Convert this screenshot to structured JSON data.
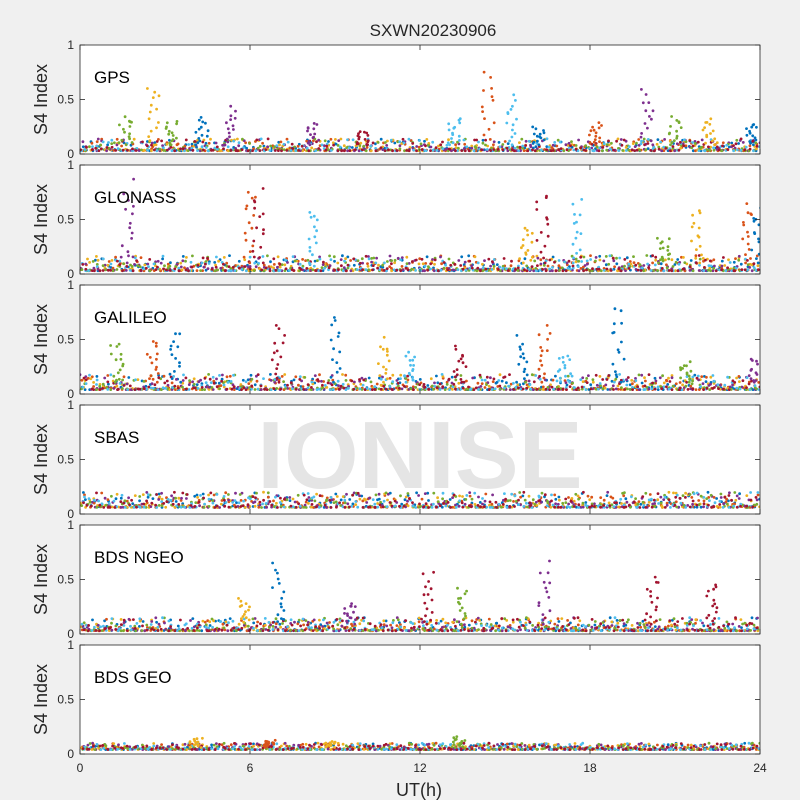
{
  "figure": {
    "title": "SXWN20230906",
    "xlabel": "UT(h)",
    "watermark": "IONISE"
  },
  "chart_data": {
    "type": "scatter",
    "title": "SXWN20230906",
    "xlabel": "UT(h)",
    "ylabel": "S4 Index",
    "xlim": [
      0,
      24
    ],
    "xticks": [
      0,
      6,
      12,
      18,
      24
    ],
    "ylim": [
      0,
      1
    ],
    "yticks": [
      0,
      0.5,
      1
    ],
    "colors": [
      "#0072BD",
      "#D95319",
      "#EDB120",
      "#7E2F8E",
      "#77AC30",
      "#4DBEEE",
      "#A2142F"
    ],
    "panels": [
      {
        "name": "GPS",
        "baseline": [
          0.03,
          0.14
        ],
        "peaks": [
          [
            1.6,
            0.36,
            4
          ],
          [
            2.6,
            0.65,
            2
          ],
          [
            3.2,
            0.32,
            4
          ],
          [
            4.3,
            0.35,
            0
          ],
          [
            5.3,
            0.45,
            3
          ],
          [
            8.2,
            0.3,
            3
          ],
          [
            10.0,
            0.22,
            6
          ],
          [
            13.2,
            0.35,
            5
          ],
          [
            14.4,
            0.77,
            1
          ],
          [
            15.2,
            0.57,
            5
          ],
          [
            16.2,
            0.25,
            0
          ],
          [
            18.2,
            0.3,
            1
          ],
          [
            20.0,
            0.6,
            3
          ],
          [
            21.0,
            0.35,
            4
          ],
          [
            22.2,
            0.33,
            2
          ],
          [
            23.7,
            0.3,
            0
          ]
        ]
      },
      {
        "name": "GLONASS",
        "baseline": [
          0.03,
          0.17
        ],
        "peaks": [
          [
            1.7,
            0.88,
            3
          ],
          [
            6.0,
            0.84,
            1
          ],
          [
            6.3,
            0.8,
            6
          ],
          [
            8.3,
            0.62,
            5
          ],
          [
            15.8,
            0.45,
            2
          ],
          [
            16.3,
            0.78,
            6
          ],
          [
            17.5,
            0.7,
            5
          ],
          [
            20.6,
            0.35,
            4
          ],
          [
            21.8,
            0.64,
            2
          ],
          [
            23.5,
            0.68,
            1
          ],
          [
            23.9,
            0.62,
            0
          ]
        ]
      },
      {
        "name": "GALILEO",
        "baseline": [
          0.04,
          0.18
        ],
        "peaks": [
          [
            1.3,
            0.5,
            4
          ],
          [
            2.6,
            0.5,
            1
          ],
          [
            3.4,
            0.6,
            0
          ],
          [
            7.0,
            0.65,
            6
          ],
          [
            9.0,
            0.74,
            0
          ],
          [
            10.7,
            0.52,
            2
          ],
          [
            11.6,
            0.4,
            5
          ],
          [
            13.4,
            0.45,
            6
          ],
          [
            15.6,
            0.55,
            0
          ],
          [
            16.4,
            0.65,
            1
          ],
          [
            17.1,
            0.38,
            5
          ],
          [
            19.0,
            0.85,
            0
          ],
          [
            21.4,
            0.3,
            4
          ],
          [
            23.9,
            0.35,
            3
          ]
        ]
      },
      {
        "name": "SBAS",
        "baseline": [
          0.06,
          0.2
        ],
        "peaks": []
      },
      {
        "name": "BDS NGEO",
        "baseline": [
          0.03,
          0.15
        ],
        "peaks": [
          [
            5.8,
            0.35,
            2
          ],
          [
            7.0,
            0.66,
            0
          ],
          [
            9.5,
            0.3,
            3
          ],
          [
            12.3,
            0.6,
            6
          ],
          [
            13.5,
            0.44,
            4
          ],
          [
            16.4,
            0.67,
            3
          ],
          [
            20.2,
            0.56,
            6
          ],
          [
            22.3,
            0.49,
            6
          ]
        ]
      },
      {
        "name": "BDS GEO",
        "baseline": [
          0.04,
          0.1
        ],
        "peaks": [
          [
            4.1,
            0.15,
            2
          ],
          [
            6.7,
            0.13,
            1
          ],
          [
            8.8,
            0.12,
            2
          ],
          [
            13.4,
            0.16,
            4
          ]
        ]
      }
    ]
  }
}
